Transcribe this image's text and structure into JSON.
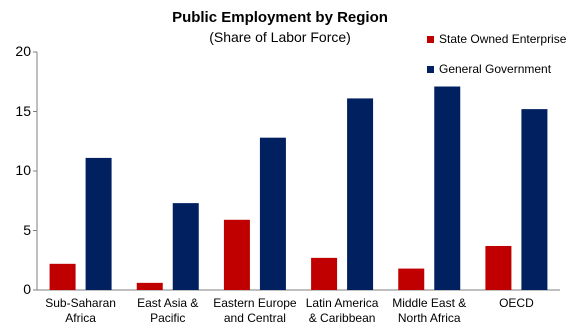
{
  "chart_data": {
    "type": "bar",
    "title": "Public Employment by Region",
    "subtitle": "(Share of Labor Force)",
    "categories": [
      "Sub-Saharan\nAfrica",
      "East Asia &\nPacific",
      "Eastern Europe\nand Central",
      "Latin America\n& Caribbean",
      "Middle East &\nNorth Africa",
      "OECD"
    ],
    "series": [
      {
        "name": "State Owned Enterprise",
        "color": "#c00000",
        "values": [
          2.2,
          0.6,
          5.9,
          2.7,
          1.8,
          3.7
        ]
      },
      {
        "name": "General Government",
        "color": "#002060",
        "values": [
          11.1,
          7.3,
          12.8,
          16.1,
          17.1,
          15.2
        ]
      }
    ],
    "ylim": [
      0,
      20
    ],
    "yticks": [
      "0",
      "5",
      "10",
      "15",
      "20"
    ],
    "legend_position": "top-right",
    "grid": false
  }
}
